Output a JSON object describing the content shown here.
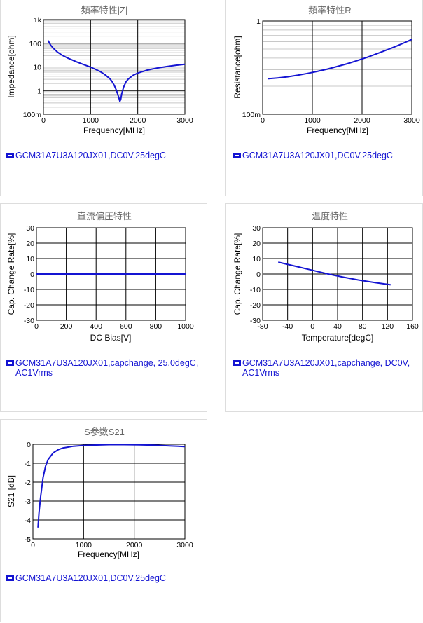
{
  "chart_data": [
    {
      "id": "impedance",
      "type": "line",
      "title": "頻率特性|Z|",
      "xlabel": "Frequency[MHz]",
      "ylabel": "Impedance[ohm]",
      "xlim": [
        0,
        3000
      ],
      "ylim": [
        0.1,
        1000
      ],
      "yscale": "log",
      "xticks": [
        "0",
        "1000",
        "2000",
        "3000"
      ],
      "yticks": [
        "100m",
        "1",
        "10",
        "100",
        "1k"
      ],
      "grid": true,
      "series": [
        {
          "name": "GCM31A7U3A120JX01,DC0V,25degC",
          "x": [
            100,
            150,
            200,
            300,
            400,
            500,
            600,
            700,
            800,
            900,
            1000,
            1100,
            1200,
            1300,
            1400,
            1450,
            1500,
            1550,
            1600,
            1620,
            1640,
            1660,
            1700,
            1750,
            1800,
            1900,
            2000,
            2200,
            2400,
            2600,
            2800,
            3000
          ],
          "y": [
            130,
            85,
            64,
            42,
            31,
            24.5,
            20,
            16.5,
            13.8,
            11.6,
            9.8,
            8.0,
            6.4,
            4.8,
            3.3,
            2.5,
            1.7,
            1.0,
            0.5,
            0.35,
            0.42,
            0.75,
            1.4,
            2.3,
            3.1,
            4.4,
            5.5,
            7.3,
            8.9,
            10.3,
            11.7,
            13.0
          ]
        }
      ]
    },
    {
      "id": "resistance",
      "type": "line",
      "title": "頻率特性R",
      "xlabel": "Frequency[MHz]",
      "ylabel": "Resistance[ohm]",
      "xlim": [
        0,
        3000
      ],
      "ylim": [
        0.1,
        1
      ],
      "yscale": "log",
      "xticks": [
        "0",
        "1000",
        "2000",
        "3000"
      ],
      "yticks": [
        "100m",
        "1"
      ],
      "grid": true,
      "series": [
        {
          "name": "GCM31A7U3A120JX01,DC0V,25degC",
          "x": [
            100,
            300,
            500,
            700,
            900,
            1100,
            1300,
            1500,
            1700,
            1900,
            2100,
            2300,
            2500,
            2700,
            2900,
            3000
          ],
          "y": [
            0.24,
            0.245,
            0.252,
            0.262,
            0.274,
            0.288,
            0.305,
            0.325,
            0.348,
            0.376,
            0.408,
            0.446,
            0.49,
            0.54,
            0.6,
            0.635
          ]
        }
      ]
    },
    {
      "id": "dcbias",
      "type": "line",
      "title": "直流偏圧特性",
      "xlabel": "DC Bias[V]",
      "ylabel": "Cap. Change Rate[%]",
      "xlim": [
        0,
        1000
      ],
      "ylim": [
        -30,
        30
      ],
      "xticks": [
        "0",
        "200",
        "400",
        "600",
        "800",
        "1000"
      ],
      "yticks": [
        "-30",
        "-20",
        "-10",
        "0",
        "10",
        "20",
        "30"
      ],
      "grid": true,
      "series": [
        {
          "name": "GCM31A7U3A120JX01,capchange, 25.0degC, AC1Vrms",
          "x": [
            0,
            250,
            500,
            750,
            1000
          ],
          "y": [
            0,
            0,
            0,
            0,
            0
          ]
        }
      ]
    },
    {
      "id": "temperature",
      "type": "line",
      "title": "温度特性",
      "xlabel": "Temperature[degC]",
      "ylabel": "Cap. Change Rate[%]",
      "xlim": [
        -80,
        160
      ],
      "ylim": [
        -30,
        30
      ],
      "xticks": [
        "-80",
        "-40",
        "0",
        "40",
        "80",
        "120",
        "160"
      ],
      "yticks": [
        "-30",
        "-20",
        "-10",
        "0",
        "10",
        "20",
        "30"
      ],
      "grid": true,
      "series": [
        {
          "name": "GCM31A7U3A120JX01,capchange, DC0V, AC1Vrms",
          "x": [
            -55,
            -25,
            0,
            25,
            50,
            75,
            100,
            125
          ],
          "y": [
            7.7,
            4.8,
            2.4,
            0,
            -2.1,
            -4,
            -5.6,
            -7
          ]
        }
      ]
    },
    {
      "id": "s21",
      "type": "line",
      "title": "S参数S21",
      "xlabel": "Frequency[MHz]",
      "ylabel": "S21 [dB]",
      "xlim": [
        0,
        3000
      ],
      "ylim": [
        -5,
        0
      ],
      "xticks": [
        "0",
        "1000",
        "2000",
        "3000"
      ],
      "yticks": [
        "-5",
        "-4",
        "-3",
        "-2",
        "-1",
        "0"
      ],
      "grid": true,
      "series": [
        {
          "name": "GCM31A7U3A120JX01,DC0V,25degC",
          "x": [
            100,
            120,
            150,
            200,
            250,
            300,
            400,
            500,
            600,
            800,
            1000,
            1200,
            1500,
            1800,
            2100,
            2400,
            2700,
            3000
          ],
          "y": [
            -4.4,
            -3.6,
            -2.8,
            -1.75,
            -1.15,
            -0.8,
            -0.45,
            -0.28,
            -0.19,
            -0.1,
            -0.06,
            -0.04,
            -0.02,
            -0.02,
            -0.03,
            -0.05,
            -0.08,
            -0.12
          ]
        }
      ]
    }
  ],
  "colors": {
    "line": "#1414d2",
    "grid": "#000000",
    "minor_grid": "#c8c8c8",
    "title": "#666666"
  }
}
